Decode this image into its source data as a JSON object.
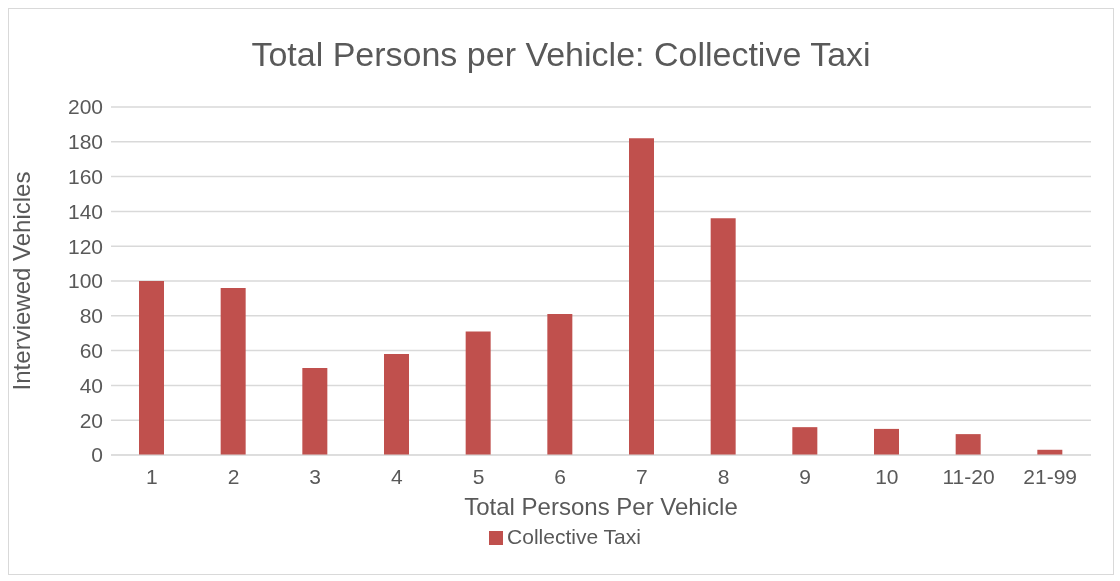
{
  "chart_data": {
    "type": "bar",
    "title": "Total Persons per Vehicle: Collective Taxi",
    "xlabel": "Total Persons Per Vehicle",
    "ylabel": "Interviewed Vehicles",
    "categories": [
      "1",
      "2",
      "3",
      "4",
      "5",
      "6",
      "7",
      "8",
      "9",
      "10",
      "11-20",
      "21-99"
    ],
    "series": [
      {
        "name": "Collective Taxi",
        "color": "#c0504d",
        "values": [
          100,
          96,
          50,
          58,
          71,
          81,
          182,
          136,
          16,
          15,
          12,
          3
        ]
      }
    ],
    "ylim": [
      0,
      200
    ],
    "yticks": [
      0,
      20,
      40,
      60,
      80,
      100,
      120,
      140,
      160,
      180,
      200
    ],
    "grid": "y",
    "legend": "bottom"
  }
}
